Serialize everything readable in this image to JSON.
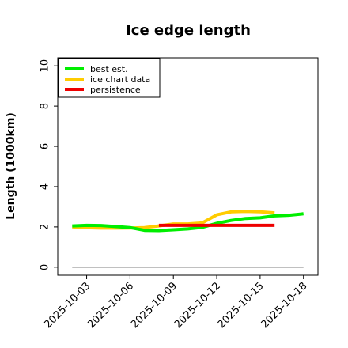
{
  "chart_data": {
    "type": "line",
    "title": "Ice edge length",
    "xlabel": "",
    "ylabel": "Length (1000km)",
    "xlim": [
      "2025-10-01",
      "2025-10-19"
    ],
    "ylim": [
      -0.4,
      10.4
    ],
    "x_ticks": [
      "2025-10-03",
      "2025-10-06",
      "2025-10-09",
      "2025-10-12",
      "2025-10-15",
      "2025-10-18"
    ],
    "y_ticks": [
      0,
      2,
      4,
      6,
      8,
      10
    ],
    "grid": false,
    "legend_position": "top-left",
    "series": [
      {
        "name": "best est.",
        "color": "#00ee00",
        "x": [
          "2025-10-02",
          "2025-10-03",
          "2025-10-04",
          "2025-10-05",
          "2025-10-06",
          "2025-10-07",
          "2025-10-08",
          "2025-10-09",
          "2025-10-10",
          "2025-10-11",
          "2025-10-12",
          "2025-10-13",
          "2025-10-14",
          "2025-10-15",
          "2025-10-16",
          "2025-10-17",
          "2025-10-18"
        ],
        "values": [
          2.05,
          2.08,
          2.07,
          2.02,
          1.97,
          1.83,
          1.82,
          1.86,
          1.9,
          1.98,
          2.18,
          2.32,
          2.42,
          2.45,
          2.55,
          2.58,
          2.65
        ]
      },
      {
        "name": "ice chart data",
        "color": "#ffcc00",
        "x": [
          "2025-10-02",
          "2025-10-03",
          "2025-10-04",
          "2025-10-05",
          "2025-10-06",
          "2025-10-07",
          "2025-10-08",
          "2025-10-09",
          "2025-10-10",
          "2025-10-11",
          "2025-10-12",
          "2025-10-13",
          "2025-10-14",
          "2025-10-15",
          "2025-10-16"
        ],
        "values": [
          2.0,
          1.96,
          1.94,
          1.94,
          1.95,
          1.97,
          2.05,
          2.15,
          2.15,
          2.2,
          2.6,
          2.75,
          2.77,
          2.75,
          2.7
        ]
      },
      {
        "name": "persistence",
        "color": "#ee0000",
        "x": [
          "2025-10-08",
          "2025-10-16"
        ],
        "values": [
          2.08,
          2.08
        ]
      },
      {
        "name": "",
        "color": "#808080",
        "x": [
          "2025-10-02",
          "2025-10-18"
        ],
        "values": [
          0,
          0
        ]
      }
    ]
  }
}
